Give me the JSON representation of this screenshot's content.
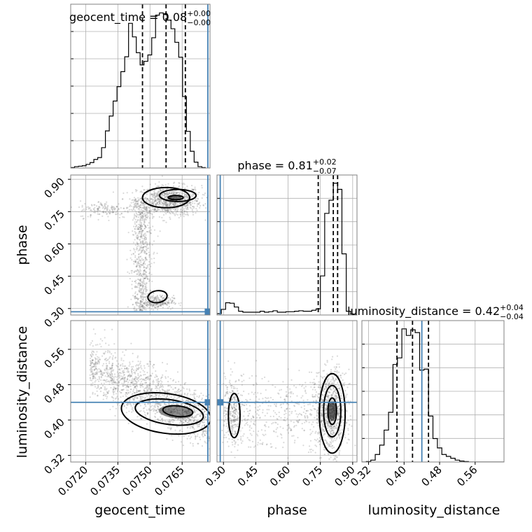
{
  "colors": {
    "truth": "#4682b4",
    "hist": "#000000",
    "grid": "#b0b0b0",
    "frame": "#808080",
    "points": "#7a7a7a"
  },
  "chart_data": {
    "type": "corner",
    "parameters": [
      "geocent_time",
      "phase",
      "luminosity_distance"
    ],
    "axis_labels": {
      "geocent_time": "geocent_time",
      "phase": "phase",
      "luminosity_distance": "luminosity_distance"
    },
    "ranges": {
      "geocent_time": [
        0.0713,
        0.0778
      ],
      "phase": [
        0.27,
        0.92
      ],
      "luminosity_distance": [
        0.305,
        0.625
      ]
    },
    "ticks": {
      "geocent_time": [
        "0.0720",
        "0.0735",
        "0.0750",
        "0.0765"
      ],
      "phase": [
        "0.30",
        "0.45",
        "0.60",
        "0.75",
        "0.90"
      ],
      "luminosity_distance": [
        "0.32",
        "0.40",
        "0.48",
        "0.56"
      ]
    },
    "titles": [
      {
        "param": "geocent_time",
        "prefix": "geocent_time = ",
        "median": "0.08",
        "plus": "+0.00",
        "minus": "−0.00"
      },
      {
        "param": "phase",
        "prefix": "phase = ",
        "median": "0.81",
        "plus": "+0.02",
        "minus": "−0.07"
      },
      {
        "param": "luminosity_distance",
        "prefix": "luminosity_distance = ",
        "median": "0.42",
        "plus": "+0.04",
        "minus": "−0.04"
      }
    ],
    "truth": {
      "geocent_time": 0.0777,
      "phase": 0.285,
      "luminosity_distance": 0.44
    },
    "quantiles": {
      "geocent_time": [
        0.07465,
        0.07575,
        0.07665
      ],
      "phase": [
        0.74,
        0.81,
        0.83
      ],
      "luminosity_distance": [
        0.384,
        0.419,
        0.455
      ]
    },
    "histograms": {
      "geocent_time": {
        "bins": [
          0.0713,
          0.07148,
          0.07166,
          0.07184,
          0.07202,
          0.0722,
          0.07238,
          0.07256,
          0.07274,
          0.07292,
          0.0731,
          0.07328,
          0.07346,
          0.07364,
          0.07382,
          0.074,
          0.07418,
          0.07436,
          0.07454,
          0.07472,
          0.0749,
          0.07508,
          0.07526,
          0.07544,
          0.07562,
          0.0758,
          0.07598,
          0.07616,
          0.07634,
          0.07652,
          0.0767,
          0.07688,
          0.07706,
          0.07724,
          0.07742,
          0.0776
        ],
        "counts": [
          0.1,
          0.3,
          0.4,
          0.5,
          0.8,
          1.2,
          1.9,
          2.3,
          4.5,
          8.2,
          11.5,
          14.8,
          18.0,
          21.3,
          24.6,
          32.0,
          29.0,
          25.5,
          22.8,
          23.6,
          25.0,
          28.8,
          33.8,
          34.3,
          34.0,
          32.7,
          30.8,
          27.8,
          24.5,
          15.8,
          8.1,
          3.7,
          1.3,
          0.3,
          0.1
        ]
      },
      "phase": {
        "bins": [
          0.27,
          0.29,
          0.31,
          0.33,
          0.35,
          0.37,
          0.39,
          0.41,
          0.43,
          0.45,
          0.47,
          0.49,
          0.51,
          0.53,
          0.55,
          0.57,
          0.59,
          0.61,
          0.63,
          0.65,
          0.67,
          0.69,
          0.71,
          0.73,
          0.75,
          0.77,
          0.79,
          0.81,
          0.83,
          0.85,
          0.87,
          0.89,
          0.91
        ],
        "counts": [
          0.3,
          1.2,
          2.6,
          2.5,
          1.7,
          0.8,
          0.6,
          0.6,
          0.6,
          0.6,
          0.8,
          0.6,
          0.7,
          0.9,
          0.6,
          0.6,
          0.7,
          0.7,
          0.8,
          0.9,
          0.8,
          0.8,
          1.0,
          1.3,
          8.3,
          21.6,
          24.4,
          28.0,
          26.7,
          13.0,
          0.8,
          0.2
        ]
      },
      "luminosity_distance": {
        "bins": [
          0.305,
          0.315,
          0.325,
          0.335,
          0.345,
          0.355,
          0.365,
          0.375,
          0.385,
          0.395,
          0.405,
          0.415,
          0.425,
          0.435,
          0.445,
          0.455,
          0.465,
          0.475,
          0.485,
          0.495,
          0.505,
          0.515,
          0.525,
          0.535,
          0.545,
          0.555,
          0.565,
          0.575,
          0.585,
          0.595,
          0.605,
          0.615,
          0.625
        ],
        "counts": [
          0.0,
          0.05,
          0.2,
          0.8,
          1.8,
          3.4,
          5.3,
          10.4,
          11.1,
          14.2,
          13.5,
          14.1,
          13.8,
          9.8,
          9.9,
          4.9,
          2.5,
          1.5,
          0.8,
          0.6,
          0.4,
          0.2,
          0.1,
          0.05,
          0.0,
          0.0,
          0.0,
          0.0,
          0.0,
          0.0,
          0.0,
          0.0
        ]
      }
    },
    "grid": true
  }
}
